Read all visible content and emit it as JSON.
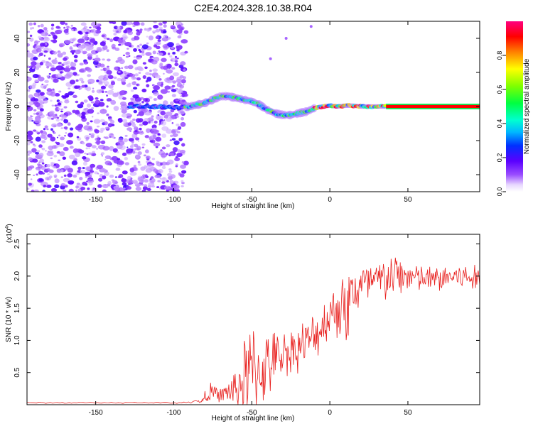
{
  "title": "C2E4.2024.328.10.38.R04",
  "chart_data": [
    {
      "type": "heatmap",
      "xlabel": "Height of straight line (km)",
      "ylabel": "Frequency (Hz)",
      "xlim": [
        -194,
        96
      ],
      "ylim": [
        -50,
        50
      ],
      "x_ticks": [
        -150,
        -100,
        -50,
        0,
        50
      ],
      "y_ticks": [
        -40,
        -20,
        0,
        20,
        40
      ],
      "colorbar": {
        "label": "Normalized spectral amplitude",
        "range": [
          0,
          1
        ],
        "ticks": [
          "0.0",
          "0.2",
          "0.4",
          "0.6",
          "0.8"
        ],
        "tick_values": [
          0.0,
          0.2,
          0.4,
          0.6,
          0.8
        ]
      },
      "noise_region_x": [
        -194,
        -92
      ],
      "ridge": {
        "description_values": "center frequency (Hz) vs height (km)",
        "x": [
          -125,
          -110,
          -95,
          -90,
          -85,
          -80,
          -75,
          -70,
          -65,
          -60,
          -55,
          -50,
          -45,
          -40,
          -35,
          -30,
          -25,
          -20,
          -15,
          -10,
          -5,
          0,
          5,
          10,
          15,
          20,
          25,
          30,
          35,
          96
        ],
        "y": [
          0,
          0,
          -0.5,
          0,
          1,
          2,
          4,
          6,
          6,
          5,
          4,
          3,
          1,
          -2,
          -4,
          -5,
          -5,
          -4,
          -3,
          -1,
          0,
          0.5,
          0,
          0.5,
          0.5,
          0,
          0,
          0,
          0,
          0
        ]
      }
    },
    {
      "type": "line",
      "xlabel": "Height of straight line (km)",
      "ylabel": "SNR (10 * v/v)",
      "y_scale_label": "(x10",
      "y_scale_exp": "4",
      "xlim": [
        -194,
        96
      ],
      "ylim": [
        0,
        2.65
      ],
      "x_ticks": [
        -150,
        -100,
        -50,
        0,
        50
      ],
      "y_ticks": [
        0.5,
        1.0,
        1.5,
        2.0,
        2.5
      ],
      "y_tick_labels": [
        "0.5",
        "1.0",
        "1.5",
        "2.0",
        "2.5"
      ],
      "series": [
        {
          "name": "SNR",
          "color": "#e8201e",
          "envelope_x": [
            -194,
            -100,
            -82,
            -78,
            -70,
            -60,
            -55,
            -50,
            -45,
            -40,
            -30,
            -20,
            -10,
            0,
            5,
            10,
            15,
            20,
            30,
            40,
            50,
            60,
            70,
            80,
            96
          ],
          "envelope_mean": [
            0.03,
            0.03,
            0.05,
            0.2,
            0.15,
            0.25,
            0.4,
            0.5,
            0.55,
            0.6,
            0.8,
            0.9,
            1.05,
            1.4,
            1.55,
            1.5,
            1.75,
            1.85,
            1.9,
            2.0,
            2.0,
            1.95,
            1.95,
            2.0,
            1.95
          ],
          "envelope_amp": [
            0.01,
            0.01,
            0.03,
            0.15,
            0.1,
            0.3,
            0.6,
            0.8,
            0.6,
            0.5,
            0.35,
            0.35,
            0.35,
            0.35,
            0.5,
            0.6,
            0.5,
            0.35,
            0.35,
            0.35,
            0.25,
            0.2,
            0.2,
            0.2,
            0.2
          ]
        }
      ]
    }
  ]
}
